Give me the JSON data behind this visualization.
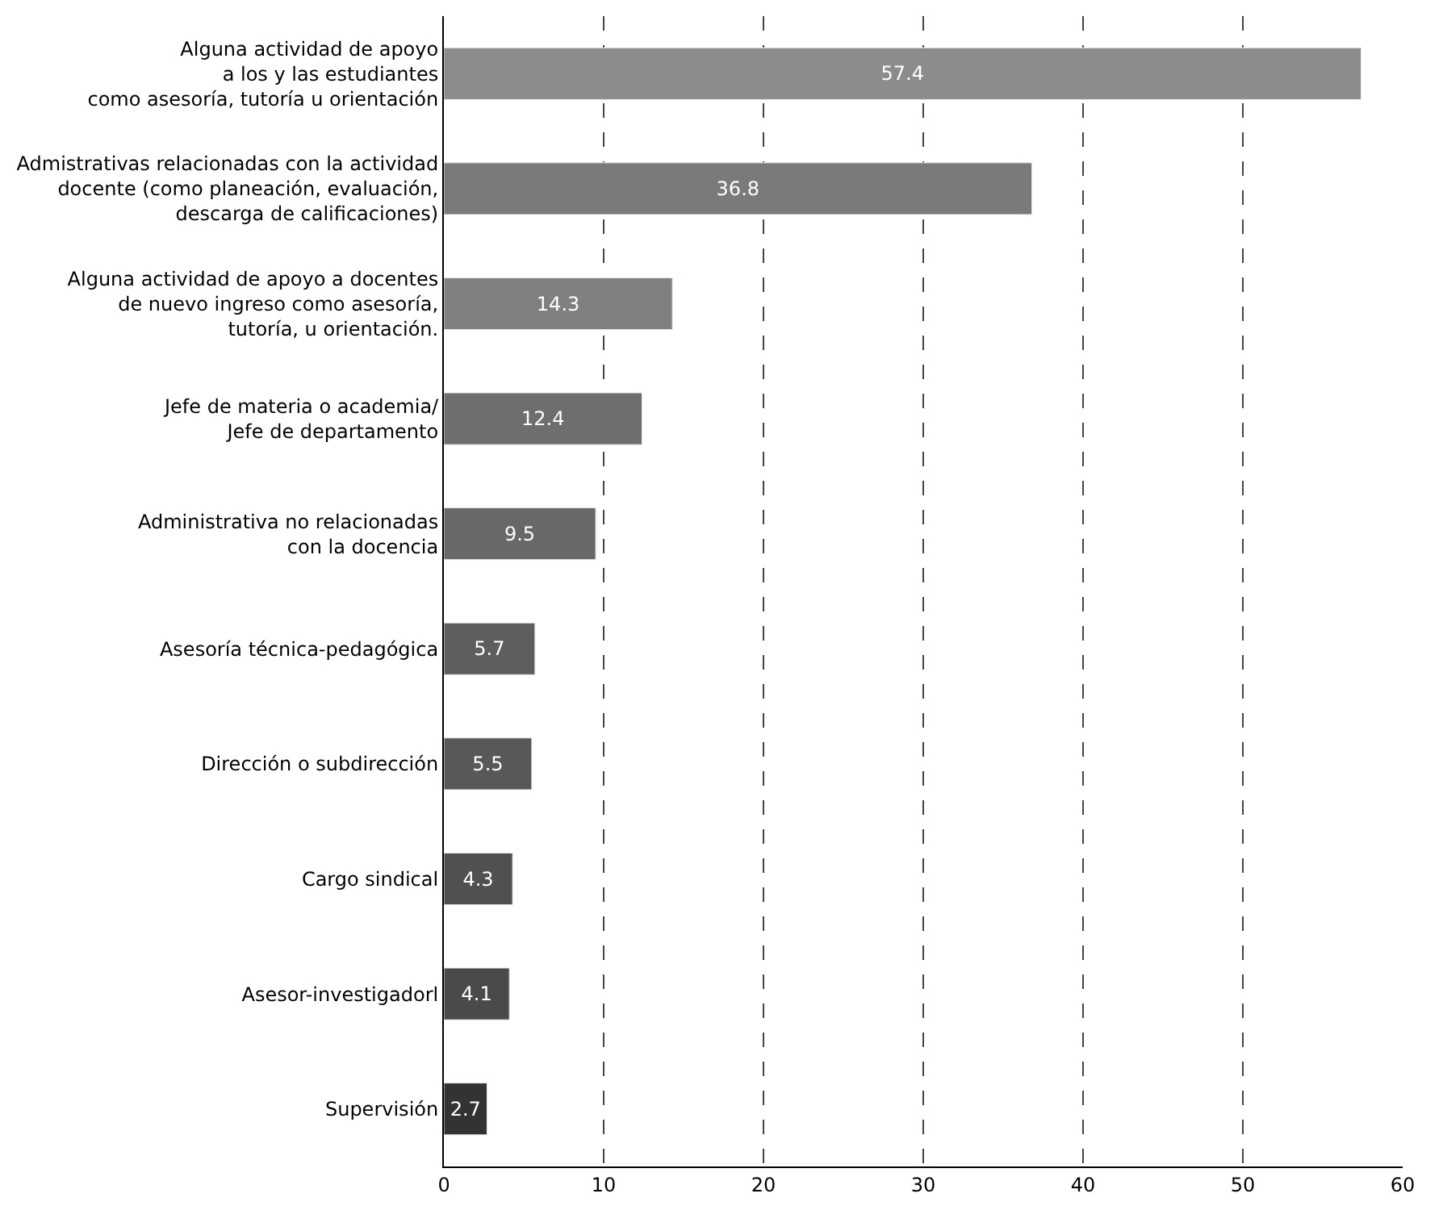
{
  "chart_data": {
    "type": "bar",
    "orientation": "horizontal",
    "categories": [
      "Alguna actividad de apoyo\na los y las estudiantes\ncomo asesoría, tutoría u orientación",
      "Admistrativas relacionadas con la actividad\ndocente (como planeación, evaluación,\ndescarga de calificaciones)",
      "Alguna actividad de apoyo a docentes\nde nuevo ingreso como asesoría,\ntutoría, u orientación.",
      "Jefe de materia o academia/\nJefe de departamento",
      "Administrativa no relacionadas\ncon la docencia",
      "Asesoría técnica-pedagógica",
      "Dirección o subdirección",
      "Cargo sindical",
      "Asesor-investigadorl",
      "Supervisión"
    ],
    "values": [
      57.4,
      36.8,
      14.3,
      12.4,
      9.5,
      5.7,
      5.5,
      4.3,
      4.1,
      2.7
    ],
    "colors": [
      "#8c8c8c",
      "#7a7a7a",
      "#808080",
      "#6e6e6e",
      "#686868",
      "#5e5e5e",
      "#585858",
      "#505050",
      "#4a4a4a",
      "#333333"
    ],
    "xlim": [
      0,
      60
    ],
    "xticks": [
      0,
      10,
      20,
      30,
      40,
      50,
      60
    ],
    "grid": "x",
    "data_labels": true,
    "legend": false
  }
}
